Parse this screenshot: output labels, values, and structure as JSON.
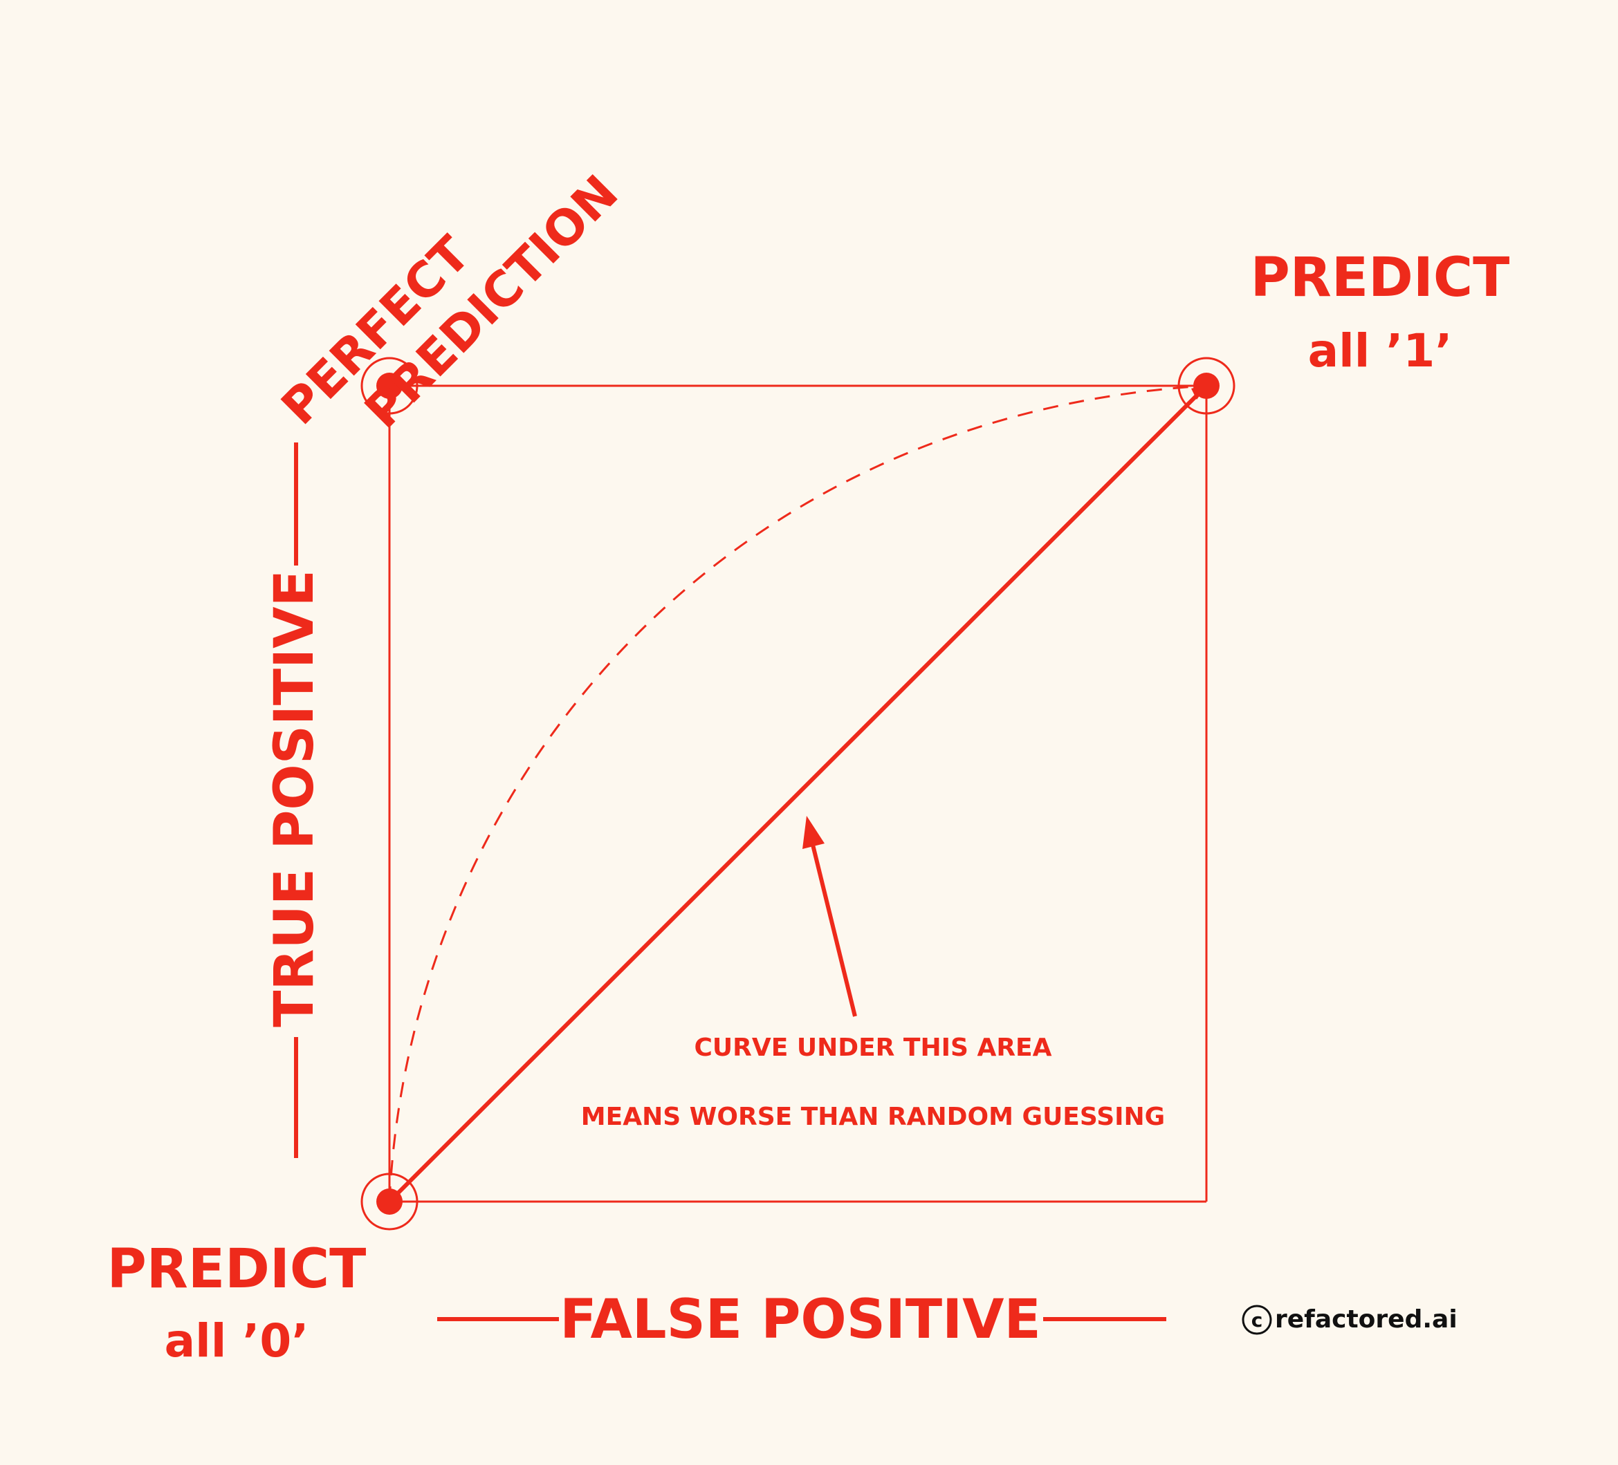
{
  "colors": {
    "accent": "#ee2a1b",
    "background": "#fdf8ef",
    "credit": "#111111"
  },
  "labels": {
    "perfect_line1": "PERFECT",
    "perfect_line2": "PREDICTION",
    "predict_one_line1": "PREDICT",
    "predict_one_line2": "all ’1’",
    "predict_zero_line1": "PREDICT",
    "predict_zero_line2": "all ’0’",
    "y_axis": "TRUE POSITIVE",
    "x_axis": "FALSE POSITIVE",
    "annotation_line1": "CURVE UNDER THIS AREA",
    "annotation_line2": "MEANS WORSE THAN RANDOM GUESSING",
    "copyright_symbol": "c",
    "credit": "refactored.ai"
  }
}
